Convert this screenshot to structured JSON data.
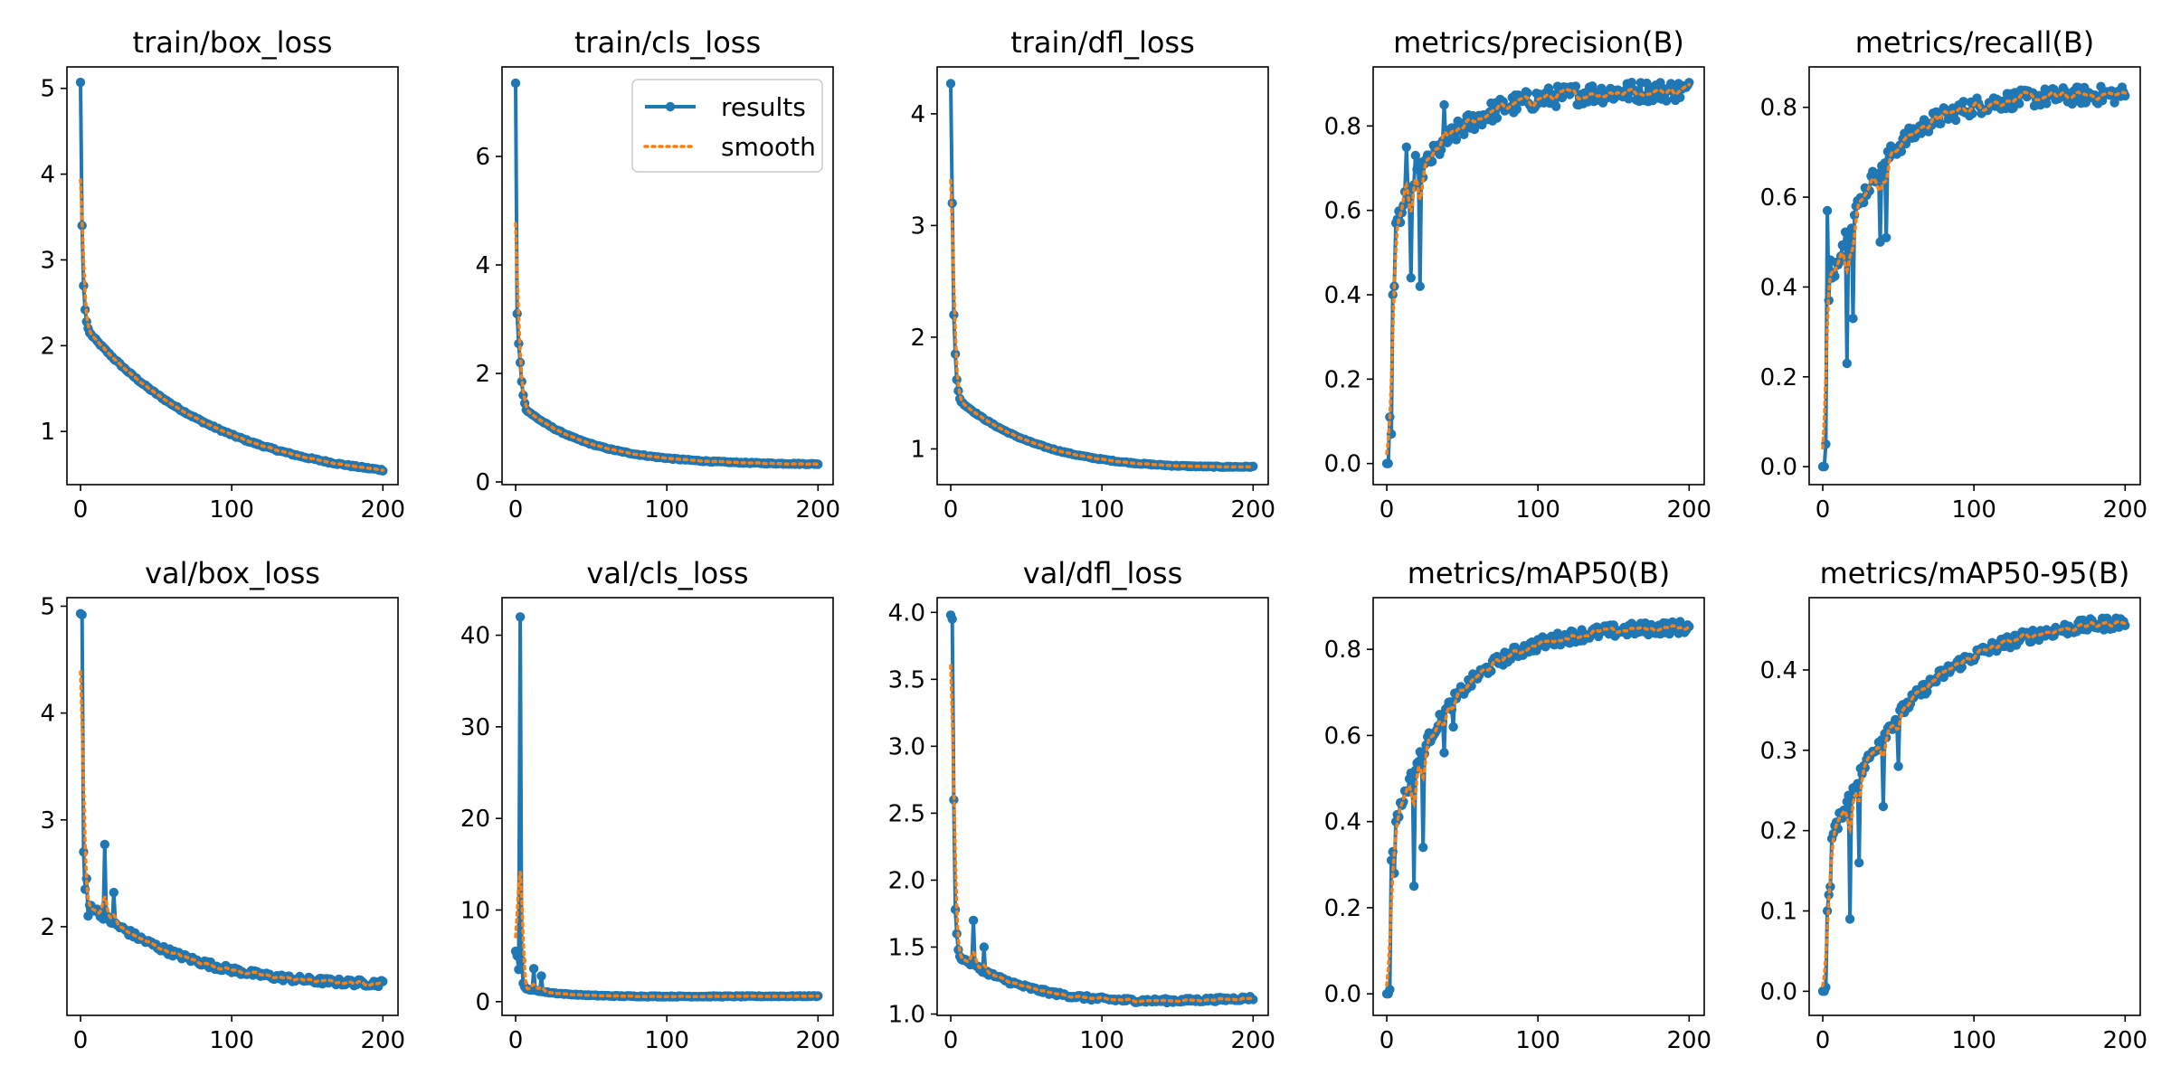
{
  "legend": {
    "entries": [
      "results",
      "smooth"
    ],
    "placement": "upper-right",
    "in_chart": "train/cls_loss"
  },
  "colors": {
    "results": "#1f77b4",
    "smooth": "#ff7f0e",
    "axes": "#000000"
  },
  "chart_data": [
    {
      "type": "line",
      "title": "train/box_loss",
      "grid": false,
      "xlim": [
        -9,
        210
      ],
      "ylim": [
        0.38,
        5.25
      ],
      "xticks": [
        0,
        100,
        200
      ],
      "yticks": [
        1,
        2,
        3,
        4,
        5
      ],
      "ytick_labels": [
        "1",
        "2",
        "3",
        "4",
        "5"
      ],
      "curve": {
        "start": 5.07,
        "early": [
          5.07,
          3.4,
          2.7,
          2.42,
          2.28,
          2.2,
          2.15
        ],
        "end": 0.55,
        "tau": 95,
        "asym": 0.15,
        "noise": 0.01,
        "spikes": []
      }
    },
    {
      "type": "line",
      "title": "train/cls_loss",
      "grid": false,
      "xlim": [
        -9,
        210
      ],
      "ylim": [
        -0.05,
        7.65
      ],
      "xticks": [
        0,
        100,
        200
      ],
      "yticks": [
        0,
        2,
        4,
        6
      ],
      "ytick_labels": [
        "0",
        "2",
        "4",
        "6"
      ],
      "curve": {
        "start": 7.35,
        "early": [
          7.35,
          3.1,
          2.55,
          2.2,
          1.85,
          1.6,
          1.45,
          1.33
        ],
        "end": 0.33,
        "tau": 45,
        "asym": 0.3,
        "noise": 0.01,
        "spikes": []
      }
    },
    {
      "type": "line",
      "title": "train/dfl_loss",
      "grid": false,
      "xlim": [
        -9,
        210
      ],
      "ylim": [
        0.68,
        4.42
      ],
      "xticks": [
        0,
        100,
        200
      ],
      "yticks": [
        1,
        2,
        3,
        4
      ],
      "ytick_labels": [
        "1",
        "2",
        "3",
        "4"
      ],
      "curve": {
        "start": 4.27,
        "early": [
          4.27,
          3.2,
          2.2,
          1.85,
          1.62,
          1.52,
          1.45,
          1.42
        ],
        "end": 0.84,
        "tau": 60,
        "asym": 0.7,
        "noise": 0.005,
        "spikes": []
      }
    },
    {
      "type": "line",
      "title": "metrics/precision(B)",
      "grid": false,
      "xlim": [
        -9,
        210
      ],
      "ylim": [
        -0.05,
        0.94
      ],
      "xticks": [
        0,
        100,
        200
      ],
      "yticks": [
        0,
        0.2,
        0.4,
        0.6,
        0.8
      ],
      "ytick_labels": [
        "0.0",
        "0.2",
        "0.4",
        "0.6",
        "0.8"
      ],
      "curve": {
        "start": 0.0,
        "early": [
          0.0,
          0.0,
          0.11,
          0.07,
          0.4,
          0.42,
          0.57
        ],
        "end": 0.885,
        "tau": 35,
        "asym": null,
        "noise": 0.025,
        "spikes": [
          [
            13,
            0.75
          ],
          [
            16,
            0.44
          ],
          [
            19,
            0.73
          ],
          [
            22,
            0.42
          ],
          [
            38,
            0.85
          ]
        ]
      }
    },
    {
      "type": "line",
      "title": "metrics/recall(B)",
      "grid": false,
      "xlim": [
        -9,
        210
      ],
      "ylim": [
        -0.04,
        0.89
      ],
      "xticks": [
        0,
        100,
        200
      ],
      "yticks": [
        0,
        0.2,
        0.4,
        0.6,
        0.8
      ],
      "ytick_labels": [
        "0.0",
        "0.2",
        "0.4",
        "0.6",
        "0.8"
      ],
      "curve": {
        "start": 0.0,
        "early": [
          0.0,
          0.0,
          0.05,
          0.57,
          0.37,
          0.46,
          0.42
        ],
        "end": 0.83,
        "tau": 35,
        "asym": null,
        "noise": 0.02,
        "spikes": [
          [
            16,
            0.23
          ],
          [
            20,
            0.33
          ],
          [
            38,
            0.5
          ],
          [
            42,
            0.51
          ]
        ]
      }
    },
    {
      "type": "line",
      "title": "val/box_loss",
      "grid": false,
      "xlim": [
        -9,
        210
      ],
      "ylim": [
        1.17,
        5.08
      ],
      "xticks": [
        0,
        100,
        200
      ],
      "yticks": [
        2,
        3,
        4,
        5
      ],
      "ytick_labels": [
        "2",
        "3",
        "4",
        "5"
      ],
      "curve": {
        "start": 4.93,
        "early": [
          4.93,
          4.92,
          2.7,
          2.35,
          2.45,
          2.1,
          2.2
        ],
        "end": 1.47,
        "tau": 80,
        "asym": 1.2,
        "noise": 0.03,
        "spikes": [
          [
            16,
            2.77
          ],
          [
            22,
            2.32
          ]
        ]
      }
    },
    {
      "type": "line",
      "title": "val/cls_loss",
      "grid": false,
      "xlim": [
        -9,
        210
      ],
      "ylim": [
        -1.5,
        44.1
      ],
      "xticks": [
        0,
        100,
        200
      ],
      "yticks": [
        0,
        10,
        20,
        30,
        40
      ],
      "ytick_labels": [
        "0",
        "10",
        "20",
        "30",
        "40"
      ],
      "curve": {
        "start": 5.5,
        "early": [
          5.5,
          5.0,
          3.5,
          42.0,
          4.5,
          2.0,
          1.6,
          1.4
        ],
        "end": 0.6,
        "tau": 25,
        "asym": 0.5,
        "noise": 0.05,
        "spikes": [
          [
            12,
            3.6
          ],
          [
            17,
            2.8
          ]
        ]
      }
    },
    {
      "type": "line",
      "title": "val/dfl_loss",
      "grid": false,
      "xlim": [
        -9,
        210
      ],
      "ylim": [
        0.99,
        4.11
      ],
      "xticks": [
        0,
        100,
        200
      ],
      "yticks": [
        1.0,
        1.5,
        2.0,
        2.5,
        3.0,
        3.5,
        4.0
      ],
      "ytick_labels": [
        "1.0",
        "1.5",
        "2.0",
        "2.5",
        "3.0",
        "3.5",
        "4.0"
      ],
      "curve": {
        "start": 3.98,
        "early": [
          3.98,
          3.95,
          2.6,
          1.78,
          1.6,
          1.48,
          1.43
        ],
        "end": 1.12,
        "tau": 55,
        "asym": 0.95,
        "noise": 0.015,
        "spikes": [
          [
            15,
            1.7
          ],
          [
            22,
            1.5
          ]
        ]
      }
    },
    {
      "type": "line",
      "title": "metrics/mAP50(B)",
      "grid": false,
      "xlim": [
        -9,
        210
      ],
      "ylim": [
        -0.05,
        0.92
      ],
      "xticks": [
        0,
        100,
        200
      ],
      "yticks": [
        0,
        0.2,
        0.4,
        0.6,
        0.8
      ],
      "ytick_labels": [
        "0.0",
        "0.2",
        "0.4",
        "0.6",
        "0.8"
      ],
      "curve": {
        "start": 0.0,
        "early": [
          0.0,
          0.0,
          0.01,
          0.31,
          0.33,
          0.28,
          0.4
        ],
        "end": 0.855,
        "tau": 40,
        "asym": null,
        "noise": 0.015,
        "spikes": [
          [
            18,
            0.25
          ],
          [
            24,
            0.34
          ],
          [
            38,
            0.56
          ],
          [
            44,
            0.62
          ]
        ]
      }
    },
    {
      "type": "line",
      "title": "metrics/mAP50-95(B)",
      "grid": false,
      "xlim": [
        -9,
        210
      ],
      "ylim": [
        -0.03,
        0.49
      ],
      "xticks": [
        0,
        100,
        200
      ],
      "yticks": [
        0,
        0.1,
        0.2,
        0.3,
        0.4
      ],
      "ytick_labels": [
        "0.0",
        "0.1",
        "0.2",
        "0.3",
        "0.4"
      ],
      "curve": {
        "start": 0.0,
        "early": [
          0.0,
          0.0,
          0.005,
          0.1,
          0.12,
          0.13,
          0.19
        ],
        "end": 0.468,
        "tau": 55,
        "asym": null,
        "noise": 0.008,
        "spikes": [
          [
            18,
            0.09
          ],
          [
            24,
            0.16
          ],
          [
            40,
            0.23
          ],
          [
            50,
            0.28
          ]
        ]
      }
    }
  ]
}
